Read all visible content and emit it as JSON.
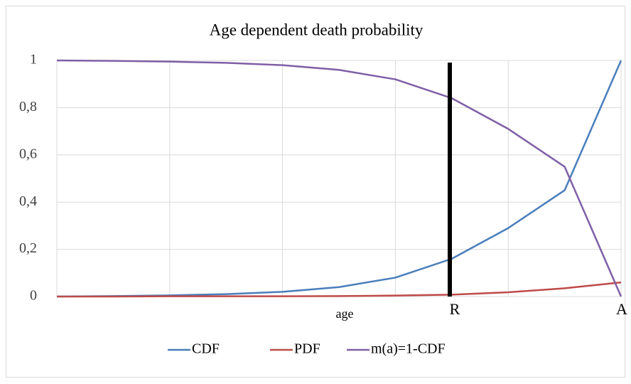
{
  "chart_data": {
    "type": "line",
    "title": "Age dependent death probability",
    "xlabel": "age",
    "annotations": [
      "R",
      "A"
    ],
    "categories": [
      null,
      null,
      null,
      null,
      null,
      null,
      null,
      null,
      null,
      null,
      null
    ],
    "series": [
      {
        "name": "CDF",
        "color": "#4a7ebb",
        "values": [
          0,
          0.002,
          0.005,
          0.01,
          0.02,
          0.04,
          0.08,
          0.16,
          0.29,
          0.45,
          1
        ]
      },
      {
        "name": "PDF",
        "color": "#be4b48",
        "values": [
          0,
          0,
          0.001,
          0.001,
          0.001,
          0.002,
          0.004,
          0.008,
          0.018,
          0.035,
          0.06
        ]
      },
      {
        "name": "m(a)=1-CDF",
        "color": "#7f5fa6",
        "values": [
          1,
          0.998,
          0.995,
          0.99,
          0.98,
          0.96,
          0.92,
          0.84,
          0.71,
          0.55,
          0
        ]
      }
    ],
    "ylim": [
      0,
      1
    ],
    "yticks": [
      0,
      {
        "value": 0.2,
        "label": "0,2"
      },
      {
        "value": 0.4,
        "label": "0,4"
      },
      {
        "value": 0.6,
        "label": "0,6"
      },
      {
        "value": 0.8,
        "label": "0,8"
      },
      1
    ],
    "grid": true,
    "legend": "bottom"
  }
}
